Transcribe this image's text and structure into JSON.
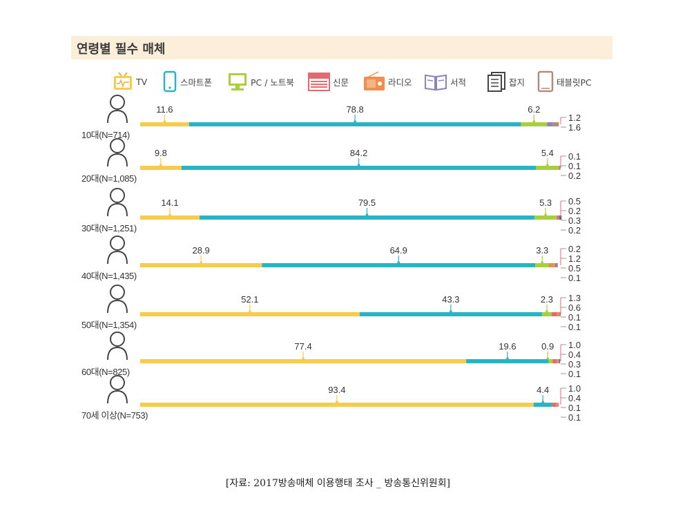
{
  "title": "연령별 필수 매체",
  "source": "[자료: 2017방송매체 이용행태 조사 _ 방송통신위원회]",
  "colors": {
    "TV": "#f7cc4b",
    "smartphone": "#27b4c4",
    "pc": "#a8cf3c",
    "newspaper": "#e46a6e",
    "radio": "#f08e4a",
    "book": "#8c80c0",
    "magazine": "#444444",
    "tablet": "#b58a7e",
    "band": "#fcefd9"
  },
  "legend": [
    {
      "key": "TV",
      "label": "TV",
      "icon": "tv-icon"
    },
    {
      "key": "smartphone",
      "label": "스마트폰",
      "icon": "smartphone-icon"
    },
    {
      "key": "pc",
      "label": "PC / 노트북",
      "icon": "pc-icon"
    },
    {
      "key": "newspaper",
      "label": "신문",
      "icon": "newspaper-icon"
    },
    {
      "key": "radio",
      "label": "라디오",
      "icon": "radio-icon"
    },
    {
      "key": "book",
      "label": "서적",
      "icon": "book-icon"
    },
    {
      "key": "magazine",
      "label": "잡지",
      "icon": "magazine-icon"
    },
    {
      "key": "tablet",
      "label": "태블릿PC",
      "icon": "tablet-icon"
    }
  ],
  "chart_data": {
    "type": "bar",
    "orientation": "horizontal-stacked-100",
    "title": "연령별 필수 매체",
    "unit": "%",
    "categories": [
      "10대(N=714)",
      "20대(N=1,085)",
      "30대(N=1,251)",
      "40대(N=1,435)",
      "50대(N=1,354)",
      "60대(N=825)",
      "70세 이상(N=753)"
    ],
    "series": [
      {
        "name": "TV",
        "values": [
          11.6,
          9.8,
          14.1,
          28.9,
          52.1,
          77.4,
          93.4
        ]
      },
      {
        "name": "스마트폰",
        "values": [
          78.8,
          84.2,
          79.5,
          64.9,
          43.3,
          19.6,
          4.4
        ]
      },
      {
        "name": "PC / 노트북",
        "values": [
          6.2,
          5.4,
          5.3,
          3.3,
          2.3,
          0.9,
          0
        ]
      },
      {
        "name": "신문",
        "values": [
          0,
          0.1,
          0.5,
          0.2,
          1.3,
          1.0,
          1.0
        ]
      },
      {
        "name": "라디오",
        "values": [
          0,
          0,
          0,
          1.2,
          0.6,
          0.4,
          0.4
        ]
      },
      {
        "name": "서적",
        "values": [
          1.2,
          0.1,
          0.2,
          0.5,
          0.1,
          0.3,
          0.1
        ]
      },
      {
        "name": "잡지",
        "values": [
          0,
          0,
          0.3,
          0.1,
          0.1,
          0.1,
          0
        ]
      },
      {
        "name": "태블릿PC",
        "values": [
          1.6,
          0.2,
          0.2,
          0,
          0,
          0,
          0.1
        ]
      }
    ],
    "main_labels": [
      [
        "11.6",
        "78.8",
        "6.2"
      ],
      [
        "9.8",
        "84.2",
        "5.4"
      ],
      [
        "14.1",
        "79.5",
        "5.3"
      ],
      [
        "28.9",
        "64.9",
        "3.3"
      ],
      [
        "52.1",
        "43.3",
        "2.3"
      ],
      [
        "77.4",
        "19.6",
        "0.9"
      ],
      [
        "93.4",
        "4.4",
        ""
      ]
    ],
    "side_labels": [
      [
        "1.2",
        "1.6"
      ],
      [
        "0.1",
        "0.1",
        "0.2"
      ],
      [
        "0.5",
        "0.2",
        "0.3",
        "0.2"
      ],
      [
        "0.2",
        "1.2",
        "0.5",
        "0.1"
      ],
      [
        "1.3",
        "0.6",
        "0.1",
        "0.1"
      ],
      [
        "1.0",
        "0.4",
        "0.3",
        "0.1"
      ],
      [
        "1.0",
        "0.4",
        "0.1",
        "0.1"
      ]
    ],
    "legend_placement": "top",
    "grid": false
  }
}
